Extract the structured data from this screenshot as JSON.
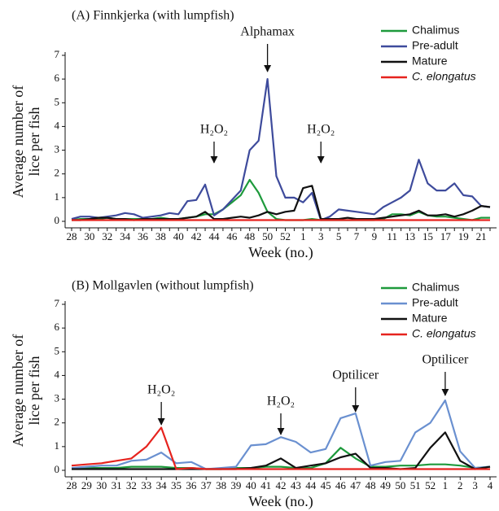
{
  "chart_data": [
    {
      "type": "line",
      "title": "(A)  Finnkjerka (with lumpfish)",
      "ylabel": [
        "Average number of",
        "lice per fish"
      ],
      "xlabel": "Week (no.)",
      "categories": [
        "28",
        null,
        "30",
        null,
        "32",
        null,
        "34",
        null,
        "36",
        null,
        "38",
        null,
        "40",
        null,
        "42",
        null,
        "44",
        null,
        "46",
        null,
        "48",
        null,
        "50",
        null,
        "52",
        null,
        "1",
        null,
        "3",
        null,
        "5",
        null,
        "7",
        null,
        "9",
        null,
        "11",
        null,
        "13",
        null,
        "15",
        null,
        "17",
        null,
        "19",
        null,
        "21",
        null
      ],
      "ylim": [
        0,
        7
      ],
      "yticks": [
        0,
        1,
        2,
        3,
        4,
        5,
        6,
        7
      ],
      "series": [
        {
          "name": "Chalimus",
          "color": "#1e9a3c",
          "values": [
            0.05,
            0.1,
            0.1,
            0.1,
            0.15,
            0.1,
            0.1,
            0.1,
            0.1,
            0.1,
            0.15,
            0.1,
            0.1,
            0.15,
            0.2,
            0.3,
            0.3,
            0.5,
            0.8,
            1.1,
            1.75,
            1.2,
            0.4,
            0.1,
            0.05,
            0.05,
            0.05,
            0.1,
            0.05,
            0.05,
            0.05,
            0.05,
            0.05,
            0.05,
            0.05,
            0.1,
            0.3,
            0.3,
            0.25,
            0.4,
            0.25,
            0.2,
            0.2,
            0.15,
            0.1,
            0.05,
            0.15,
            0.15
          ]
        },
        {
          "name": "Pre-adult",
          "color": "#3e4b9c",
          "values": [
            0.1,
            0.2,
            0.2,
            0.15,
            0.2,
            0.25,
            0.35,
            0.3,
            0.15,
            0.2,
            0.25,
            0.35,
            0.3,
            0.85,
            0.9,
            1.55,
            0.25,
            0.5,
            0.9,
            1.3,
            3.0,
            3.4,
            6.0,
            1.9,
            1.0,
            1.0,
            0.8,
            1.2,
            0.05,
            0.2,
            0.5,
            0.45,
            0.4,
            0.35,
            0.3,
            0.6,
            0.8,
            1.0,
            1.3,
            2.6,
            1.6,
            1.3,
            1.3,
            1.6,
            1.1,
            1.05,
            0.65,
            0.6
          ]
        },
        {
          "name": "Mature",
          "color": "#111111",
          "values": [
            0.05,
            0.05,
            0.1,
            0.15,
            0.15,
            0.1,
            0.1,
            0.05,
            0.1,
            0.1,
            0.1,
            0.1,
            0.1,
            0.15,
            0.2,
            0.4,
            0.1,
            0.1,
            0.15,
            0.2,
            0.15,
            0.25,
            0.4,
            0.3,
            0.4,
            0.45,
            1.4,
            1.5,
            0.1,
            0.1,
            0.1,
            0.15,
            0.1,
            0.1,
            0.1,
            0.15,
            0.2,
            0.25,
            0.3,
            0.45,
            0.25,
            0.25,
            0.3,
            0.2,
            0.3,
            0.45,
            0.65,
            0.6
          ]
        },
        {
          "name": "C. elongatus",
          "color": "#e6231e",
          "values": [
            0.05,
            0.05,
            0.05,
            0.05,
            0.05,
            0.05,
            0.05,
            0.05,
            0.05,
            0.05,
            0.05,
            0.05,
            0.05,
            0.05,
            0.05,
            0.05,
            0.05,
            0.05,
            0.05,
            0.05,
            0.05,
            0.05,
            0.05,
            0.05,
            0.05,
            0.05,
            0.05,
            0.05,
            0.05,
            0.05,
            0.05,
            0.05,
            0.05,
            0.05,
            0.05,
            0.05,
            0.05,
            0.05,
            0.05,
            0.05,
            0.05,
            0.05,
            0.05,
            0.05,
            0.05,
            0.05,
            0.05,
            0.05
          ]
        }
      ],
      "annotations": [
        {
          "text": "H₂O₂",
          "x": "44"
        },
        {
          "text": "Alphamax",
          "x": "50"
        },
        {
          "text": "H₂O₂",
          "x": "3"
        }
      ]
    },
    {
      "type": "line",
      "title": "(B)  Mollgavlen (without lumpfish)",
      "ylabel": [
        "Average number of",
        "lice per fish"
      ],
      "xlabel": "Week (no.)",
      "categories": [
        "28",
        "29",
        "30",
        "31",
        "32",
        "33",
        "34",
        "35",
        "36",
        "37",
        "38",
        "39",
        "40",
        "41",
        "42",
        "43",
        "44",
        "45",
        "46",
        "47",
        "48",
        "49",
        "50",
        "51",
        "52",
        "1",
        "2",
        "3",
        "4"
      ],
      "ylim": [
        0,
        7
      ],
      "yticks": [
        0,
        1,
        2,
        3,
        4,
        5,
        6,
        7
      ],
      "series": [
        {
          "name": "Chalimus",
          "color": "#1e9a3c",
          "values": [
            0.1,
            0.1,
            0.1,
            0.1,
            0.15,
            0.15,
            0.15,
            0.1,
            0.1,
            0.05,
            0.05,
            0.1,
            0.1,
            0.15,
            0.15,
            0.1,
            0.1,
            0.3,
            0.95,
            0.5,
            0.15,
            0.15,
            0.2,
            0.2,
            0.25,
            0.25,
            0.2,
            0.1,
            0.15
          ]
        },
        {
          "name": "Pre-adult",
          "color": "#6a90d0",
          "values": [
            0.1,
            0.15,
            0.2,
            0.2,
            0.4,
            0.45,
            0.75,
            0.3,
            0.35,
            0.05,
            0.1,
            0.15,
            1.05,
            1.1,
            1.4,
            1.2,
            0.75,
            0.9,
            2.2,
            2.4,
            0.2,
            0.35,
            0.4,
            1.6,
            2.0,
            2.95,
            0.8,
            0.1,
            0.15
          ]
        },
        {
          "name": "Mature",
          "color": "#111111",
          "values": [
            0.05,
            0.05,
            0.05,
            0.05,
            0.05,
            0.05,
            0.05,
            0.05,
            0.05,
            0.05,
            0.05,
            0.05,
            0.1,
            0.2,
            0.5,
            0.1,
            0.2,
            0.3,
            0.55,
            0.7,
            0.1,
            0.1,
            0.05,
            0.1,
            0.95,
            1.6,
            0.4,
            0.05,
            0.15
          ]
        },
        {
          "name": "C. elongatus",
          "color": "#e6231e",
          "values": [
            0.2,
            0.25,
            0.3,
            0.4,
            0.5,
            1.0,
            1.8,
            0.05,
            0.1,
            0.05,
            0.05,
            0.05,
            0.05,
            0.05,
            0.05,
            0.05,
            0.05,
            0.05,
            0.05,
            0.05,
            0.05,
            0.05,
            0.05,
            0.05,
            0.05,
            0.05,
            0.05,
            0.05,
            0.05
          ]
        }
      ],
      "annotations": [
        {
          "text": "H₂O₂",
          "x": "34"
        },
        {
          "text": "H₂O₂",
          "x": "42"
        },
        {
          "text": "Optilicer",
          "x": "47"
        },
        {
          "text": "Optilicer",
          "x": "1"
        }
      ]
    }
  ]
}
